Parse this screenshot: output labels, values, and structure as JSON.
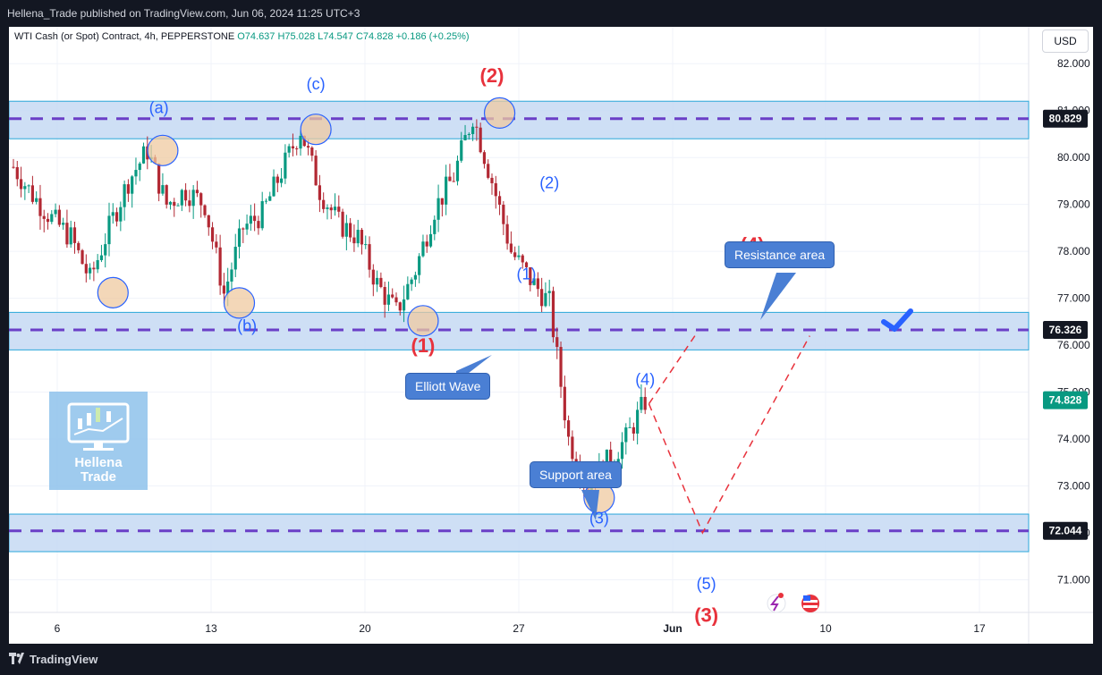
{
  "header": {
    "publisher": "Hellena_Trade published on TradingView.com, Jun 06, 2024 11:25 UTC+3"
  },
  "symbol": {
    "name": "WTI Cash (or Spot) Contract, 4h, PEPPERSTONE",
    "open": "O74.637",
    "high": "H75.028",
    "low": "L74.547",
    "close": "C74.828",
    "change": "+0.186 (+0.25%)"
  },
  "currency_button": "USD",
  "footer": {
    "brand": "TradingView"
  },
  "logo": {
    "line1": "Hellena",
    "line2": "Trade"
  },
  "callouts": {
    "resistance": "Resistance area",
    "elliott": "Elliott Wave",
    "support": "Support area"
  },
  "colors": {
    "up": "#089981",
    "down": "#b22833",
    "zone": "#c5d9f3",
    "dash": "#6a3fc7",
    "red_wave": "#e8323c",
    "blue_wave": "#2962ff",
    "callout": "#4a7fd4"
  },
  "chart_data": {
    "type": "candlestick",
    "ylim": [
      70.4,
      82.5
    ],
    "y_ticks": [
      "82.000",
      "81.000",
      "80.000",
      "79.000",
      "78.000",
      "77.000",
      "76.000",
      "75.000",
      "74.000",
      "73.000",
      "72.000",
      "71.000"
    ],
    "x_ticks": [
      "6",
      "13",
      "20",
      "27",
      "Jun",
      "10",
      "17"
    ],
    "price_labels": [
      {
        "value": 80.829,
        "text": "80.829",
        "style": "dark"
      },
      {
        "value": 76.326,
        "text": "76.326",
        "style": "dark"
      },
      {
        "value": 74.828,
        "text": "74.828",
        "style": "green"
      },
      {
        "value": 72.044,
        "text": "72.044",
        "style": "dark"
      }
    ],
    "zones": [
      {
        "name": "top",
        "from": 80.4,
        "to": 81.2,
        "line": 80.829
      },
      {
        "name": "resistance",
        "from": 75.9,
        "to": 76.7,
        "line": 76.326
      },
      {
        "name": "support",
        "from": 71.6,
        "to": 72.4,
        "line": 72.044
      }
    ],
    "wave_labels": [
      {
        "text": "(a)",
        "color": "blue",
        "idx": 38,
        "price": 80.95
      },
      {
        "text": "(c)",
        "color": "blue",
        "idx": 79,
        "price": 81.45
      },
      {
        "text": "(b)",
        "color": "blue",
        "idx": 61,
        "price": 76.3
      },
      {
        "text": "(2)",
        "color": "red",
        "idx": 125,
        "price": 81.6
      },
      {
        "text": "(1)",
        "color": "red",
        "idx": 107,
        "price": 75.85
      },
      {
        "text": "(2)",
        "color": "blue",
        "idx": 140,
        "price": 79.35
      },
      {
        "text": "(1)",
        "color": "blue",
        "idx": 134,
        "price": 77.4
      },
      {
        "text": "(4)",
        "color": "red",
        "idx": 193,
        "price": 78.0
      },
      {
        "text": "(4)",
        "color": "blue",
        "idx": 165,
        "price": 75.15
      },
      {
        "text": "(3)",
        "color": "blue",
        "idx": 153,
        "price": 72.2
      },
      {
        "text": "(5)",
        "color": "blue",
        "idx": 181,
        "price": 70.8
      },
      {
        "text": "(3)",
        "color": "red",
        "idx": 181,
        "price": 70.1
      }
    ],
    "markers": [
      {
        "idx": 26,
        "price": 77.12
      },
      {
        "idx": 39,
        "price": 80.15
      },
      {
        "idx": 59,
        "price": 76.9
      },
      {
        "idx": 79,
        "price": 80.6
      },
      {
        "idx": 107,
        "price": 76.52
      },
      {
        "idx": 127,
        "price": 80.95
      },
      {
        "idx": 153,
        "price": 72.75
      }
    ],
    "projection": [
      {
        "idx": 166,
        "price": 74.75
      },
      {
        "idx": 180,
        "price": 72.0
      },
      {
        "idx": 208,
        "price": 76.2
      }
    ],
    "projection_alt": [
      {
        "idx": 166,
        "price": 74.75
      },
      {
        "idx": 178,
        "price": 76.2
      }
    ],
    "anchors": [
      {
        "price": 79.8
      },
      {
        "price": 79.2
      },
      {
        "price": 78.7
      },
      {
        "price": 78.3
      },
      {
        "price": 77.4
      },
      {
        "price": 78.5
      },
      {
        "price": 79.5
      },
      {
        "price": 80.15
      },
      {
        "price": 79.0
      },
      {
        "price": 79.3
      },
      {
        "price": 79.0
      },
      {
        "price": 77.1
      },
      {
        "price": 78.5
      },
      {
        "price": 78.8
      },
      {
        "price": 79.7
      },
      {
        "price": 80.6
      },
      {
        "price": 79.3
      },
      {
        "price": 78.6
      },
      {
        "price": 78.3
      },
      {
        "price": 77.3
      },
      {
        "price": 76.7
      },
      {
        "price": 77.6
      },
      {
        "price": 78.9
      },
      {
        "price": 79.6
      },
      {
        "price": 80.9
      },
      {
        "price": 79.5
      },
      {
        "price": 78.0
      },
      {
        "price": 77.4
      },
      {
        "price": 76.9
      },
      {
        "price": 74.0
      },
      {
        "price": 73.0
      },
      {
        "price": 73.5
      },
      {
        "price": 74.0
      },
      {
        "price": 74.8
      }
    ],
    "candle_count": 166
  }
}
